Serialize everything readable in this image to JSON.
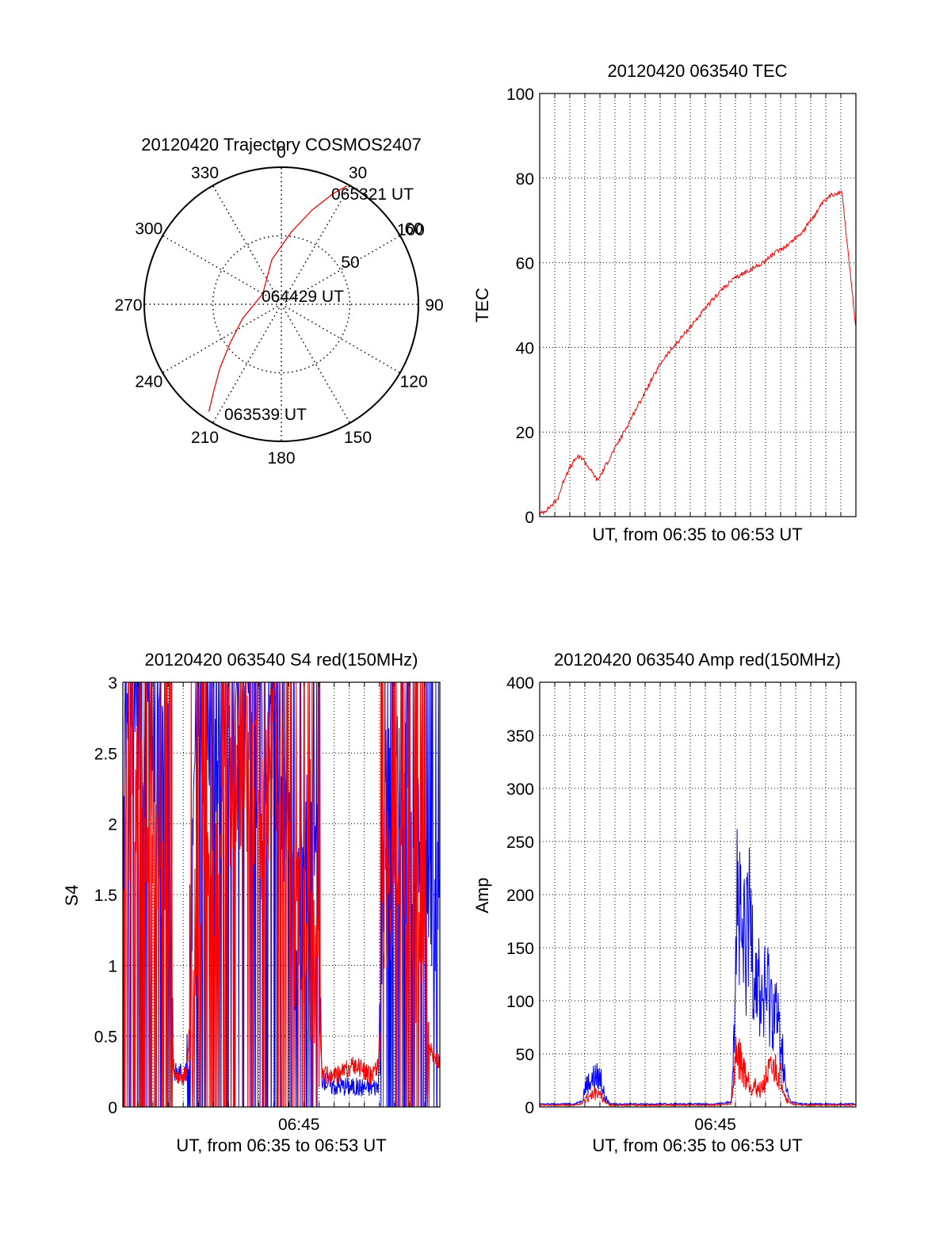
{
  "colors": {
    "red": "#ff0000",
    "blue": "#0000ff",
    "axis": "#000000",
    "grid": "#000000"
  },
  "chart_data": [
    {
      "id": "trajectory",
      "type": "polar",
      "title": "20120420 Trajectory COSMOS2407",
      "angle_labels": [
        "0",
        "30",
        "60",
        "90",
        "120",
        "150",
        "180",
        "210",
        "240",
        "270",
        "300",
        "330"
      ],
      "radial_labels": [
        "50",
        "100"
      ],
      "grid": true,
      "track": [
        {
          "azimuth": 214,
          "zenith": 85
        },
        {
          "azimuth": 218,
          "zenith": 72
        },
        {
          "azimuth": 224,
          "zenith": 58
        },
        {
          "azimuth": 233,
          "zenith": 42
        },
        {
          "azimuth": 250,
          "zenith": 27
        },
        {
          "azimuth": 300,
          "zenith": 14
        },
        {
          "azimuth": 348,
          "zenith": 30
        },
        {
          "azimuth": 8,
          "zenith": 48
        },
        {
          "azimuth": 18,
          "zenith": 65
        },
        {
          "azimuth": 25,
          "zenith": 80
        },
        {
          "azimuth": 29,
          "zenith": 89
        }
      ],
      "annotations": [
        "065321 UT",
        "064429 UT",
        "063539 UT"
      ]
    },
    {
      "id": "tec",
      "type": "line",
      "title": "20120420 063540 TEC",
      "xlabel": "UT, from 06:35 to 06:53 UT",
      "ylabel": "TEC",
      "xlim": [
        0,
        18
      ],
      "ylim": [
        0,
        100
      ],
      "yticks": [
        "0",
        "20",
        "40",
        "60",
        "80",
        "100"
      ],
      "grid": true,
      "series": [
        {
          "color": "red",
          "x": [
            0.0,
            0.5,
            1.0,
            1.5,
            2.1,
            2.4,
            3.3,
            4.0,
            4.8,
            5.3,
            6.2,
            7.0,
            7.8,
            8.6,
            9.4,
            10.2,
            11.0,
            11.6,
            12.5,
            13.3,
            14.2,
            15.0,
            15.6,
            16.1,
            16.6,
            17.2,
            18.0
          ],
          "y": [
            0.5,
            2.0,
            4.0,
            10.0,
            14.0,
            14.0,
            8.5,
            14.0,
            20.0,
            24.0,
            31.0,
            37.0,
            41.0,
            45.0,
            49.0,
            53.0,
            56.0,
            57.5,
            59.5,
            62.0,
            64.5,
            67.5,
            71.0,
            74.0,
            76.0,
            77.0,
            44.5
          ]
        }
      ]
    },
    {
      "id": "s4",
      "type": "line",
      "title": "20120420 063540 S4 red(150MHz)",
      "xlabel": "UT, from 06:35 to 06:53 UT",
      "ylabel": "S4",
      "xlim": [
        0,
        18
      ],
      "ylim": [
        0,
        3
      ],
      "yticks": [
        "0",
        "0.5",
        "1",
        "1.5",
        "2",
        "2.5",
        "3"
      ],
      "xtick_label": "06:45",
      "xtick_value": 10,
      "grid": true,
      "series": [
        {
          "color": "blue",
          "x": [
            0.0,
            0.8,
            1.8,
            2.5,
            2.9,
            3.2,
            3.6,
            4.2,
            5.0,
            5.8,
            6.5,
            7.2,
            8.0,
            8.6,
            9.3,
            9.8,
            10.4,
            11.0,
            11.3,
            11.9,
            12.5,
            13.2,
            14.0,
            14.5,
            15.0,
            15.5,
            16.0,
            16.5,
            17.0,
            17.5,
            18.0
          ],
          "y": [
            2.6,
            2.8,
            2.5,
            2.7,
            0.25,
            0.25,
            0.24,
            2.7,
            2.8,
            2.4,
            2.7,
            2.9,
            2.2,
            2.9,
            2.0,
            1.2,
            1.9,
            2.0,
            0.2,
            0.15,
            0.15,
            0.14,
            0.14,
            0.15,
            2.8,
            2.1,
            2.9,
            1.7,
            2.3,
            1.2,
            1.3
          ]
        },
        {
          "color": "red",
          "x": [
            0.0,
            0.8,
            1.8,
            2.5,
            2.9,
            3.2,
            3.6,
            4.2,
            5.0,
            5.8,
            6.5,
            7.2,
            8.0,
            8.6,
            9.3,
            9.8,
            10.4,
            11.0,
            11.3,
            11.9,
            12.5,
            13.2,
            14.0,
            14.5,
            15.0,
            15.5,
            16.0,
            16.5,
            17.0,
            17.5,
            18.0
          ],
          "y": [
            1.6,
            2.2,
            1.7,
            1.3,
            0.25,
            0.22,
            0.22,
            1.3,
            1.5,
            2.0,
            2.3,
            2.4,
            2.0,
            2.5,
            1.9,
            1.3,
            1.1,
            1.0,
            0.25,
            0.2,
            0.25,
            0.3,
            0.22,
            0.3,
            1.6,
            1.5,
            1.8,
            1.3,
            0.9,
            0.4,
            0.3
          ]
        }
      ]
    },
    {
      "id": "amp",
      "type": "line",
      "title": "20120420 063540 Amp red(150MHz)",
      "xlabel": "UT, from 06:35 to 06:53 UT",
      "ylabel": "Amp",
      "xlim": [
        0,
        18
      ],
      "ylim": [
        0,
        400
      ],
      "yticks": [
        "0",
        "50",
        "100",
        "150",
        "200",
        "250",
        "300",
        "350",
        "400"
      ],
      "xtick_label": "06:45",
      "xtick_value": 10,
      "grid": true,
      "series": [
        {
          "color": "blue",
          "x": [
            0.0,
            2.0,
            2.4,
            2.6,
            2.9,
            3.2,
            3.5,
            3.7,
            4.0,
            6.0,
            8.0,
            10.0,
            10.9,
            11.1,
            11.2,
            11.5,
            11.8,
            12.0,
            12.3,
            12.6,
            13.0,
            13.4,
            13.8,
            14.0,
            14.3,
            15.0,
            18.0
          ],
          "y": [
            2,
            2,
            5,
            22,
            28,
            32,
            30,
            10,
            2,
            2,
            2,
            2,
            4,
            120,
            230,
            160,
            170,
            200,
            150,
            110,
            120,
            105,
            60,
            20,
            4,
            2,
            2
          ]
        },
        {
          "color": "red",
          "x": [
            0.0,
            2.0,
            2.4,
            2.6,
            2.9,
            3.2,
            3.5,
            3.7,
            4.0,
            6.0,
            8.0,
            10.0,
            10.9,
            11.1,
            11.2,
            11.5,
            11.8,
            12.0,
            12.3,
            12.6,
            13.0,
            13.4,
            13.8,
            14.0,
            14.3,
            15.0,
            18.0
          ],
          "y": [
            1,
            1,
            2,
            8,
            12,
            14,
            12,
            4,
            1,
            1,
            1,
            1,
            2,
            40,
            60,
            45,
            30,
            25,
            20,
            18,
            35,
            40,
            30,
            10,
            2,
            1,
            1
          ]
        }
      ]
    }
  ]
}
